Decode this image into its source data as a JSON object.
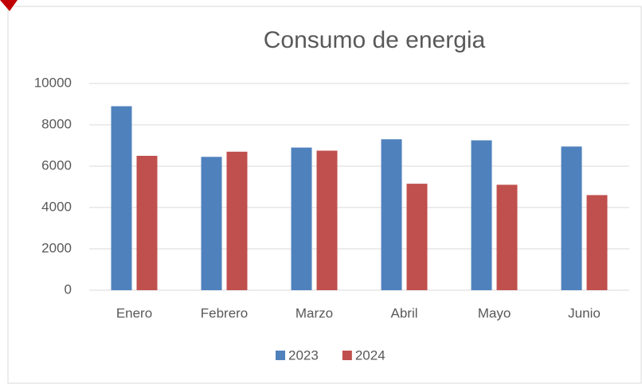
{
  "chart_data": {
    "type": "bar",
    "title": "Consumo de energia",
    "categories": [
      "Enero",
      "Febrero",
      "Marzo",
      "Abril",
      "Mayo",
      "Junio"
    ],
    "series": [
      {
        "name": "2023",
        "color": "#4f81bd",
        "values": [
          8900,
          6450,
          6900,
          7300,
          7250,
          6950
        ]
      },
      {
        "name": "2024",
        "color": "#c0504d",
        "values": [
          6500,
          6700,
          6750,
          5150,
          5100,
          4600
        ]
      }
    ],
    "ylim": [
      0,
      10000
    ],
    "yticks": [
      0,
      2000,
      4000,
      6000,
      8000,
      10000
    ],
    "grid": true,
    "legend": "bottom"
  }
}
